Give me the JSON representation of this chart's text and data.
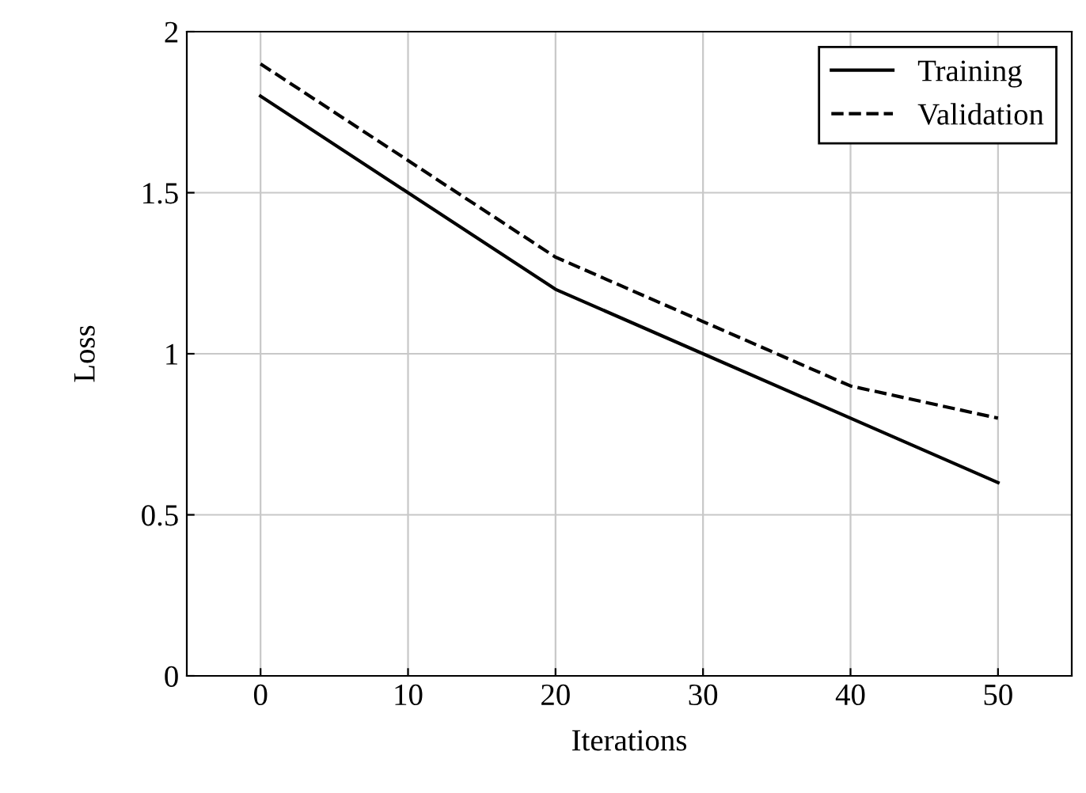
{
  "chart_data": {
    "type": "line",
    "xlabel": "Iterations",
    "ylabel": "Loss",
    "x": [
      0,
      10,
      20,
      30,
      40,
      50
    ],
    "series": [
      {
        "name": "Training",
        "color": "#000000",
        "values": [
          1.8,
          1.5,
          1.2,
          1.0,
          0.8,
          0.6
        ],
        "line_style": "solid"
      },
      {
        "name": "Validation",
        "color": "#000000",
        "values": [
          1.9,
          1.6,
          1.3,
          1.1,
          0.9,
          0.8
        ],
        "line_style": "dashed"
      }
    ],
    "xlim": [
      -5,
      55
    ],
    "xticks": [
      0,
      10,
      20,
      30,
      40,
      50
    ],
    "ylim": [
      0,
      2
    ],
    "yticks": [
      0,
      0.5,
      1,
      1.5,
      2
    ],
    "grid": true,
    "legend": "top right",
    "marker": "none"
  }
}
